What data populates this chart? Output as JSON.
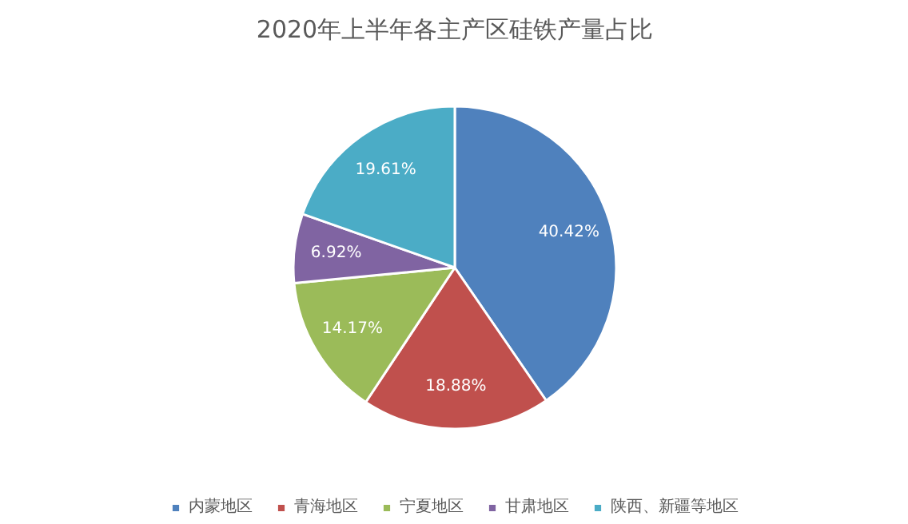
{
  "chart_data": {
    "type": "pie",
    "title": "2020年上半年各主产区硅铁产量占比",
    "categories": [
      "内蒙地区",
      "青海地区",
      "宁夏地区",
      "甘肃地区",
      "陕西、新疆等地区"
    ],
    "values": [
      40.42,
      18.88,
      14.17,
      6.92,
      19.61
    ],
    "colors": [
      "#4f81bd",
      "#c0504d",
      "#9bbb59",
      "#8064a2",
      "#4bacc6"
    ],
    "value_labels": [
      "40.42%",
      "18.88%",
      "14.17%",
      "6.92%",
      "19.61%"
    ],
    "legend": "bottom"
  }
}
